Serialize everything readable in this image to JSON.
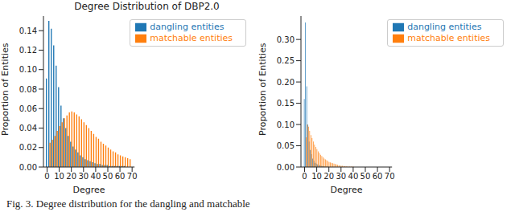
{
  "caption": "Fig. 3. Degree distribution for the dangling and matchable",
  "chart_data": [
    {
      "type": "bar",
      "title": "Degree Distribution of DBP2.0",
      "xlabel": "Degree",
      "ylabel": "Proportion of Entities",
      "legend": "upper right",
      "x": [
        0,
        2,
        4,
        6,
        8,
        10,
        12,
        14,
        16,
        18,
        20,
        22,
        24,
        26,
        28,
        30,
        32,
        34,
        36,
        38,
        40,
        42,
        44,
        46,
        48,
        50,
        52,
        54,
        56,
        58,
        60,
        62,
        64,
        66,
        68
      ],
      "xlim": [
        -3,
        72
      ],
      "xticks": [
        0,
        10,
        20,
        30,
        40,
        50,
        60,
        70
      ],
      "ylim": [
        0,
        0.155
      ],
      "yticks": [
        {
          "value": 0,
          "label": "0.00"
        },
        {
          "value": 0.02,
          "label": "0.02"
        },
        {
          "value": 0.04,
          "label": "0.04"
        },
        {
          "value": 0.06,
          "label": "0.06"
        },
        {
          "value": 0.08,
          "label": "0.08"
        },
        {
          "value": 0.1,
          "label": "0.10"
        },
        {
          "value": 0.12,
          "label": "0.12"
        },
        {
          "value": 0.14,
          "label": "0.14"
        }
      ],
      "series": [
        {
          "name": "dangling entities",
          "color": "#1f77b4",
          "values": [
            0.091,
            0.15,
            0.142,
            0.125,
            0.104,
            0.082,
            0.063,
            0.05,
            0.04,
            0.032,
            0.026,
            0.021,
            0.018,
            0.015,
            0.012,
            0.01,
            0.008,
            0.007,
            0.006,
            0.005,
            0.004,
            0.003,
            0.003,
            0.002,
            0.002,
            0.002,
            0.001,
            0.001,
            0.001,
            0.001,
            0.001,
            0.001,
            0.001,
            0,
            0
          ]
        },
        {
          "name": "matchable entities",
          "color": "#ff7f0e",
          "values": [
            0,
            0.025,
            0.028,
            0.032,
            0.037,
            0.042,
            0.046,
            0.05,
            0.053,
            0.056,
            0.057,
            0.056,
            0.054,
            0.052,
            0.049,
            0.046,
            0.043,
            0.04,
            0.037,
            0.034,
            0.031,
            0.029,
            0.026,
            0.024,
            0.022,
            0.02,
            0.018,
            0.016,
            0.015,
            0.013,
            0.012,
            0.011,
            0.01,
            0.009,
            0.008
          ]
        }
      ]
    },
    {
      "type": "bar",
      "xlabel": "Degree",
      "ylabel": "Proportion of Entities",
      "legend": "upper right",
      "x": [
        0,
        1,
        2,
        3,
        4,
        5,
        6,
        7,
        8,
        9,
        10,
        11,
        12,
        13,
        14,
        15,
        16,
        17,
        18,
        19,
        20,
        21,
        22,
        23,
        24,
        25,
        26,
        27,
        28,
        29,
        30,
        31,
        32,
        33,
        34,
        35,
        36,
        37,
        38,
        39,
        40
      ],
      "xlim": [
        -3,
        72
      ],
      "xticks": [
        0,
        10,
        20,
        30,
        40,
        50,
        60,
        70
      ],
      "ylim": [
        0,
        0.355
      ],
      "yticks": [
        {
          "value": 0,
          "label": "0.00"
        },
        {
          "value": 0.05,
          "label": "0.05"
        },
        {
          "value": 0.1,
          "label": "0.10"
        },
        {
          "value": 0.15,
          "label": "0.15"
        },
        {
          "value": 0.2,
          "label": "0.20"
        },
        {
          "value": 0.25,
          "label": "0.25"
        },
        {
          "value": 0.3,
          "label": "0.30"
        }
      ],
      "series": [
        {
          "name": "dangling entities",
          "color": "#1f77b4",
          "values": [
            0.16,
            0.34,
            0.19,
            0.1,
            0.06,
            0.04,
            0.03,
            0.02,
            0.015,
            0.01,
            0.008,
            0.006,
            0.005,
            0.004,
            0.003,
            0.002,
            0.002,
            0.001,
            0.001,
            0.001,
            0.001,
            0,
            0,
            0,
            0,
            0,
            0,
            0,
            0,
            0,
            0,
            0,
            0,
            0,
            0,
            0,
            0,
            0,
            0,
            0,
            0
          ]
        },
        {
          "name": "matchable entities",
          "color": "#ff7f0e",
          "values": [
            0,
            0.07,
            0.1,
            0.095,
            0.085,
            0.075,
            0.068,
            0.06,
            0.053,
            0.047,
            0.042,
            0.037,
            0.033,
            0.029,
            0.026,
            0.023,
            0.02,
            0.018,
            0.016,
            0.014,
            0.012,
            0.011,
            0.01,
            0.009,
            0.008,
            0.007,
            0.006,
            0.005,
            0.004,
            0.004,
            0.003,
            0.003,
            0.002,
            0.002,
            0.002,
            0.001,
            0.001,
            0.001,
            0.001,
            0.001,
            0.001
          ]
        }
      ]
    }
  ]
}
